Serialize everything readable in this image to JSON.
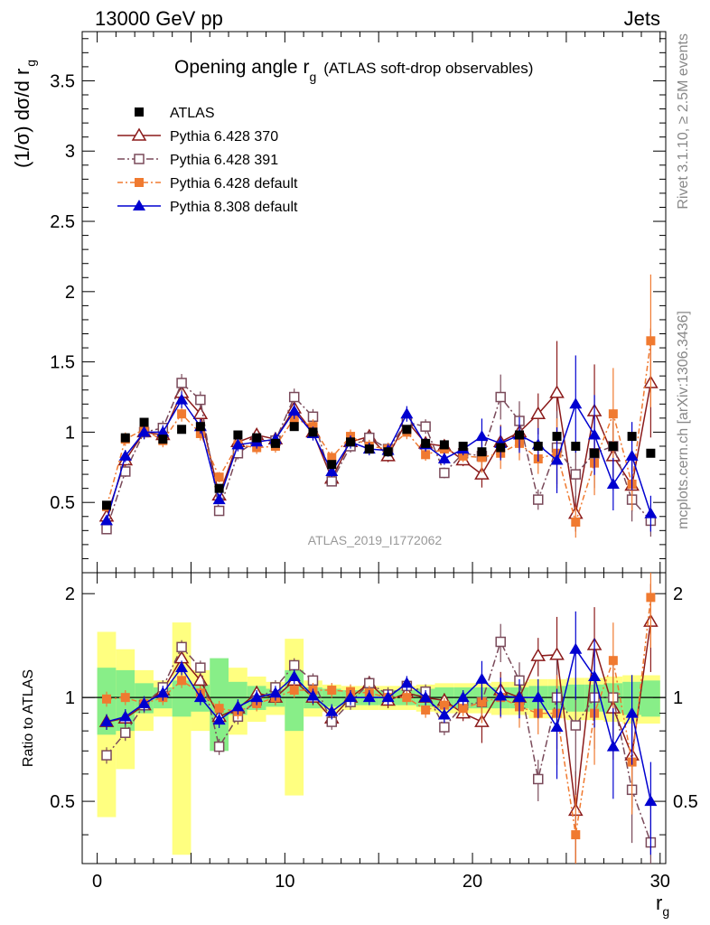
{
  "header": {
    "energy": "13000 GeV pp",
    "process": "Jets",
    "right_top": "Rivet 3.1.10, ≥ 2.5M events",
    "right_bottom": "mcplots.cern.ch [arXiv:1306.3436]"
  },
  "chart_data": [
    {
      "type": "line",
      "title": "Opening angle r",
      "title_sub": "g",
      "title_suffix": "(ATLAS soft-drop observables)",
      "ylabel": "(1/σ) dσ/d r",
      "ylabel_sub": "g",
      "watermark": "ATLAS_2019_I1772062",
      "xlim": [
        -0.8,
        30.3
      ],
      "ylim": [
        0,
        3.85
      ],
      "yticks": [
        "0.5",
        "1",
        "1.5",
        "2",
        "2.5",
        "3",
        "3.5"
      ],
      "legend_position": "top-left",
      "x": [
        0.5,
        1.5,
        2.5,
        3.5,
        4.5,
        5.5,
        6.5,
        7.5,
        8.5,
        9.5,
        10.5,
        11.5,
        12.5,
        13.5,
        14.5,
        15.5,
        16.5,
        17.5,
        18.5,
        19.5,
        20.5,
        21.5,
        22.5,
        23.5,
        24.5,
        25.5,
        26.5,
        27.5,
        28.5,
        29.5
      ],
      "series": [
        {
          "name": "ATLAS",
          "color": "#000000",
          "marker": "square-filled",
          "values": [
            0.48,
            0.96,
            1.07,
            0.95,
            1.02,
            1.04,
            0.6,
            0.98,
            0.96,
            0.92,
            1.04,
            1.0,
            0.77,
            0.93,
            0.88,
            0.86,
            1.02,
            0.92,
            0.91,
            0.9,
            0.86,
            0.89,
            0.98,
            0.9,
            0.97,
            0.9,
            0.85,
            0.9,
            0.97,
            0.85
          ]
        },
        {
          "name": "Pythia 6.428 370",
          "color": "#8b1a1a",
          "marker": "triangle-open",
          "dash": "",
          "values": [
            0.4,
            0.8,
            1.0,
            0.98,
            1.28,
            1.13,
            0.55,
            0.93,
            0.98,
            0.95,
            1.17,
            1.0,
            0.67,
            0.93,
            0.97,
            0.83,
            1.08,
            0.92,
            0.9,
            0.8,
            0.7,
            0.93,
            1.0,
            1.13,
            1.28,
            0.42,
            1.15,
            0.83,
            0.62,
            1.35
          ]
        },
        {
          "name": "Pythia 6.428 391",
          "color": "#7a4a5a",
          "marker": "square-open",
          "dash": "8,3,2,3",
          "values": [
            0.31,
            0.72,
            1.0,
            1.03,
            1.35,
            1.23,
            0.44,
            0.85,
            0.94,
            0.94,
            1.25,
            1.11,
            0.65,
            0.9,
            0.96,
            0.88,
            1.07,
            1.04,
            0.71,
            0.85,
            0.83,
            1.25,
            1.08,
            0.52,
            0.89,
            0.7,
            0.85,
            0.9,
            0.52,
            0.37
          ]
        },
        {
          "name": "Pythia 6.428 default",
          "color": "#f07a30",
          "marker": "square-filled",
          "dash": "6,3,2,3",
          "values": [
            0.47,
            0.95,
            1.02,
            0.94,
            1.13,
            0.99,
            0.68,
            0.91,
            0.89,
            0.9,
            1.1,
            1.04,
            0.82,
            0.97,
            0.9,
            0.88,
            1.0,
            0.84,
            0.88,
            0.83,
            0.82,
            0.85,
            0.92,
            0.81,
            0.85,
            0.36,
            0.78,
            1.13,
            0.63,
            1.65
          ]
        },
        {
          "name": "Pythia 8.308 default",
          "color": "#0000d0",
          "marker": "triangle-filled",
          "dash": "",
          "values": [
            0.37,
            0.83,
            1.0,
            1.0,
            1.23,
            1.04,
            0.52,
            0.91,
            0.93,
            0.95,
            1.15,
            0.99,
            0.72,
            0.93,
            0.88,
            0.87,
            1.13,
            0.91,
            0.81,
            0.88,
            0.97,
            0.92,
            0.98,
            0.91,
            0.8,
            1.2,
            0.98,
            0.63,
            0.83,
            0.42
          ]
        }
      ]
    },
    {
      "type": "line",
      "ylabel": "Ratio to ATLAS",
      "xlabel": "r",
      "xlabel_sub": "g",
      "ylim": [
        0.33,
        2.3
      ],
      "yticks": [
        "0.5",
        "1",
        "2"
      ],
      "xticks": [
        "0",
        "10",
        "20",
        "30"
      ],
      "band_inner": [
        0.22,
        0.2,
        0.1,
        0.07,
        0.12,
        0.09,
        0.3,
        0.11,
        0.08,
        0.06,
        0.2,
        0.07,
        0.06,
        0.05,
        0.05,
        0.05,
        0.05,
        0.06,
        0.07,
        0.07,
        0.07,
        0.07,
        0.07,
        0.08,
        0.08,
        0.09,
        0.09,
        0.1,
        0.11,
        0.12
      ],
      "band_outer": [
        0.55,
        0.38,
        0.2,
        0.12,
        0.65,
        0.2,
        0.22,
        0.22,
        0.15,
        0.11,
        0.48,
        0.12,
        0.09,
        0.08,
        0.08,
        0.08,
        0.08,
        0.09,
        0.1,
        0.1,
        0.1,
        0.11,
        0.11,
        0.13,
        0.13,
        0.14,
        0.14,
        0.15,
        0.16,
        0.16
      ],
      "series": [
        {
          "name": "Pythia 6.428 370",
          "values": [
            0.85,
            0.87,
            0.95,
            1.05,
            1.3,
            1.12,
            0.88,
            0.93,
            1.03,
            1.0,
            1.12,
            1.0,
            0.87,
            1.0,
            1.1,
            0.98,
            1.03,
            1.0,
            0.98,
            0.9,
            0.85,
            1.05,
            1.0,
            1.32,
            1.33,
            0.47,
            1.42,
            0.93,
            0.68,
            1.66
          ]
        },
        {
          "name": "Pythia 6.428 391",
          "values": [
            0.68,
            0.79,
            0.95,
            1.07,
            1.4,
            1.22,
            0.72,
            0.88,
            0.98,
            1.07,
            1.24,
            1.12,
            0.85,
            0.97,
            1.1,
            1.02,
            1.08,
            1.04,
            0.82,
            0.95,
            0.97,
            1.45,
            1.12,
            0.58,
            1.0,
            0.83,
            1.0,
            1.0,
            0.54,
            0.38
          ]
        },
        {
          "name": "Pythia 6.428 default",
          "values": [
            0.99,
            1.0,
            0.96,
            1.0,
            1.12,
            1.03,
            0.93,
            0.91,
            0.96,
            1.0,
            1.05,
            1.05,
            1.05,
            1.04,
            1.03,
            1.0,
            1.0,
            0.92,
            0.95,
            0.93,
            0.97,
            1.0,
            0.94,
            0.9,
            0.9,
            0.4,
            0.9,
            1.28,
            0.65,
            1.95
          ]
        },
        {
          "name": "Pythia 8.308 default",
          "values": [
            0.85,
            0.88,
            0.96,
            1.03,
            1.22,
            1.0,
            0.86,
            0.94,
            1.0,
            1.03,
            1.15,
            1.01,
            0.91,
            1.0,
            1.0,
            1.0,
            1.1,
            1.0,
            0.89,
            1.0,
            1.13,
            1.01,
            1.0,
            1.0,
            0.82,
            1.38,
            1.15,
            0.72,
            0.9,
            0.5
          ]
        }
      ]
    }
  ]
}
